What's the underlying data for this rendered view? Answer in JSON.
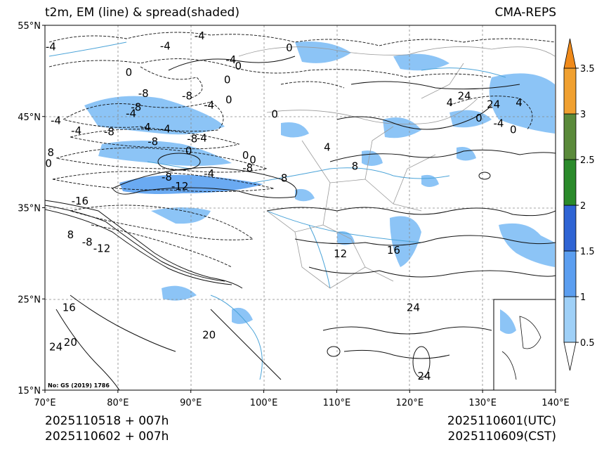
{
  "header": {
    "title_left": "t2m, EM (line) & spread(shaded)",
    "title_right": "CMA-REPS"
  },
  "footer": {
    "init_line": "2025110518  +  007h",
    "init_line_cst": "2025110602  +  007h",
    "valid_utc": "2025110601(UTC)",
    "valid_cst": "2025110609(CST)"
  },
  "map": {
    "lon_ticks": [
      "70°E",
      "80°E",
      "90°E",
      "100°E",
      "110°E",
      "120°E",
      "130°E",
      "140°E"
    ],
    "lat_ticks": [
      "55°N",
      "45°N",
      "35°N",
      "25°N",
      "15°N"
    ],
    "footnote": "No: GS (2019) 1786",
    "contour_labels": [
      {
        "text": "-4",
        "lon": 70.8,
        "lat": 52.6
      },
      {
        "text": "-4",
        "lon": 86.5,
        "lat": 52.7
      },
      {
        "text": "0",
        "lon": 81.5,
        "lat": 49.8
      },
      {
        "text": "-4",
        "lon": 91.2,
        "lat": 53.8
      },
      {
        "text": "-4",
        "lon": 95.5,
        "lat": 51.2
      },
      {
        "text": "0",
        "lon": 96.5,
        "lat": 50.5
      },
      {
        "text": "0",
        "lon": 95.0,
        "lat": 49.0
      },
      {
        "text": "0",
        "lon": 103.5,
        "lat": 52.5
      },
      {
        "text": "-8",
        "lon": 89.5,
        "lat": 47.2
      },
      {
        "text": "-4",
        "lon": 92.5,
        "lat": 46.2
      },
      {
        "text": "-8",
        "lon": 82.5,
        "lat": 46.0
      },
      {
        "text": "-8",
        "lon": 83.5,
        "lat": 47.5
      },
      {
        "text": "-4",
        "lon": 81.8,
        "lat": 45.3
      },
      {
        "text": "0",
        "lon": 95.2,
        "lat": 46.8
      },
      {
        "text": "0",
        "lon": 101.5,
        "lat": 45.2
      },
      {
        "text": "-4",
        "lon": 71.5,
        "lat": 44.5
      },
      {
        "text": "-4",
        "lon": 83.8,
        "lat": 43.8
      },
      {
        "text": "-4",
        "lon": 74.3,
        "lat": 43.4
      },
      {
        "text": "-8",
        "lon": 78.8,
        "lat": 43.3
      },
      {
        "text": "-4",
        "lon": 86.5,
        "lat": 43.6
      },
      {
        "text": "-8",
        "lon": 90.2,
        "lat": 42.5
      },
      {
        "text": "0",
        "lon": 89.7,
        "lat": 41.2
      },
      {
        "text": "-4",
        "lon": 91.5,
        "lat": 42.6
      },
      {
        "text": "-8",
        "lon": 84.8,
        "lat": 42.2
      },
      {
        "text": "0",
        "lon": 97.5,
        "lat": 40.7
      },
      {
        "text": "4",
        "lon": 108.7,
        "lat": 41.6
      },
      {
        "text": "-4",
        "lon": 92.5,
        "lat": 38.7
      },
      {
        "text": "-8",
        "lon": 97.8,
        "lat": 39.3
      },
      {
        "text": "0",
        "lon": 98.5,
        "lat": 40.2
      },
      {
        "text": "-8",
        "lon": 86.7,
        "lat": 38.3
      },
      {
        "text": "-12",
        "lon": 88.5,
        "lat": 37.3
      },
      {
        "text": "-16",
        "lon": 74.8,
        "lat": 35.7
      },
      {
        "text": "8",
        "lon": 102.8,
        "lat": 38.2
      },
      {
        "text": "8",
        "lon": 112.5,
        "lat": 39.5
      },
      {
        "text": "0",
        "lon": 70.5,
        "lat": 39.8
      },
      {
        "text": "8",
        "lon": 70.8,
        "lat": 41.0
      },
      {
        "text": "8",
        "lon": 73.5,
        "lat": 32.0
      },
      {
        "text": "-8",
        "lon": 75.8,
        "lat": 31.2
      },
      {
        "text": "-12",
        "lon": 77.8,
        "lat": 30.5
      },
      {
        "text": "12",
        "lon": 110.5,
        "lat": 29.9
      },
      {
        "text": "16",
        "lon": 117.8,
        "lat": 30.3
      },
      {
        "text": "16",
        "lon": 73.3,
        "lat": 24.0
      },
      {
        "text": "20",
        "lon": 73.5,
        "lat": 20.2
      },
      {
        "text": "24",
        "lon": 71.5,
        "lat": 19.7
      },
      {
        "text": "20",
        "lon": 92.5,
        "lat": 21.0
      },
      {
        "text": "24",
        "lon": 120.5,
        "lat": 24.0
      },
      {
        "text": "24",
        "lon": 127.5,
        "lat": 47.2
      },
      {
        "text": "24",
        "lon": 131.5,
        "lat": 46.3
      },
      {
        "text": "4",
        "lon": 125.5,
        "lat": 46.5
      },
      {
        "text": "0",
        "lon": 129.5,
        "lat": 44.8
      },
      {
        "text": "0",
        "lon": 134.2,
        "lat": 43.5
      },
      {
        "text": "-4",
        "lon": 132.2,
        "lat": 44.2
      },
      {
        "text": "4",
        "lon": 135.0,
        "lat": 46.5
      },
      {
        "text": "24",
        "lon": 122.0,
        "lat": 16.5
      }
    ]
  },
  "colorbar": {
    "labels": [
      "0.5",
      "1",
      "1.5",
      "2",
      "2.5",
      "3",
      "3.5"
    ],
    "colors": [
      "#9fd0f7",
      "#5b9ef0",
      "#2f64d4",
      "#2a8a2a",
      "#5a8a3a",
      "#f0a030"
    ],
    "extend_min_color": "#ffffff",
    "extend_max_color": "#f08a1a"
  }
}
